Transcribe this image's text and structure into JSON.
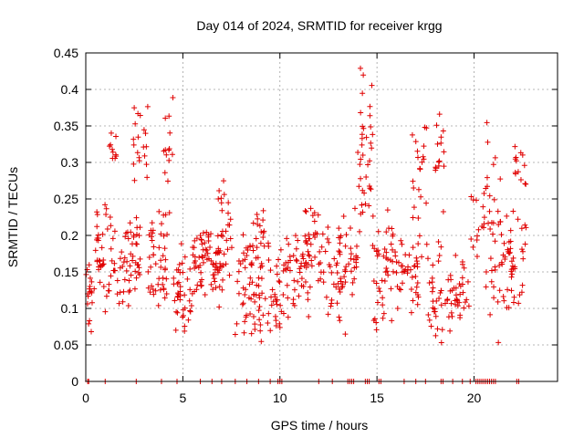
{
  "chart_data": {
    "type": "scatter",
    "title": "Day 014 of 2024, SRMTID for receiver krgg",
    "xlabel": "GPS time / hours",
    "ylabel": "SRMTID / TECUs",
    "xlim": [
      0,
      24.3
    ],
    "ylim": [
      0,
      0.45
    ],
    "x_ticks": [
      0,
      5,
      10,
      15,
      20
    ],
    "x_tick_labels": [
      "0",
      "5",
      "10",
      "15",
      "20"
    ],
    "y_ticks": [
      0,
      0.05,
      0.1,
      0.15,
      0.2,
      0.25,
      0.3,
      0.35,
      0.4,
      0.45
    ],
    "y_tick_labels": [
      "0",
      "0.05",
      "0.1",
      "0.15",
      "0.2",
      "0.25",
      "0.3",
      "0.35",
      "0.4",
      "0.45"
    ],
    "grid": true,
    "marker": "+",
    "color": "#e00000",
    "seed": 14,
    "zero_points_x": [
      0.1,
      0.15,
      1.0,
      2.6,
      3.9,
      4.7,
      5.9,
      6.5,
      7.0,
      7.7,
      8.3,
      8.9,
      9.5,
      9.9,
      10.0,
      10.1,
      12.0,
      12.7,
      13.5,
      13.6,
      13.7,
      13.8,
      14.4,
      14.5,
      14.6,
      15.1,
      15.2,
      16.4,
      17.0,
      17.5,
      18.3,
      18.4,
      18.9,
      19.4,
      19.8,
      20.1,
      20.2,
      20.3,
      20.4,
      20.5,
      20.6,
      20.7,
      20.8,
      20.9,
      21.0,
      21.1,
      22.2,
      22.3
    ],
    "clusters": [
      {
        "x0": 0.0,
        "x1": 0.5,
        "lo": 0.05,
        "hi": 0.19,
        "n": 18
      },
      {
        "x0": 0.5,
        "x1": 1.6,
        "lo": 0.09,
        "hi": 0.26,
        "n": 45
      },
      {
        "x0": 1.2,
        "x1": 1.6,
        "lo": 0.26,
        "hi": 0.37,
        "n": 10
      },
      {
        "x0": 1.6,
        "x1": 2.8,
        "lo": 0.09,
        "hi": 0.24,
        "n": 50
      },
      {
        "x0": 2.4,
        "x1": 3.2,
        "lo": 0.24,
        "hi": 0.4,
        "n": 20
      },
      {
        "x0": 3.2,
        "x1": 4.2,
        "lo": 0.08,
        "hi": 0.26,
        "n": 45
      },
      {
        "x0": 4.0,
        "x1": 4.5,
        "lo": 0.2,
        "hi": 0.41,
        "n": 15
      },
      {
        "x0": 4.5,
        "x1": 5.5,
        "lo": 0.05,
        "hi": 0.2,
        "n": 40
      },
      {
        "x0": 5.5,
        "x1": 7.2,
        "lo": 0.1,
        "hi": 0.21,
        "n": 75
      },
      {
        "x0": 6.8,
        "x1": 7.6,
        "lo": 0.12,
        "hi": 0.3,
        "n": 25
      },
      {
        "x0": 7.6,
        "x1": 9.0,
        "lo": 0.02,
        "hi": 0.22,
        "n": 55
      },
      {
        "x0": 8.6,
        "x1": 9.2,
        "lo": 0.15,
        "hi": 0.27,
        "n": 15
      },
      {
        "x0": 9.0,
        "x1": 10.0,
        "lo": 0.05,
        "hi": 0.2,
        "n": 35
      },
      {
        "x0": 10.0,
        "x1": 11.5,
        "lo": 0.06,
        "hi": 0.24,
        "n": 55
      },
      {
        "x0": 11.3,
        "x1": 12.0,
        "lo": 0.1,
        "hi": 0.28,
        "n": 25
      },
      {
        "x0": 12.0,
        "x1": 13.5,
        "lo": 0.06,
        "hi": 0.24,
        "n": 55
      },
      {
        "x0": 13.5,
        "x1": 14.0,
        "lo": 0.1,
        "hi": 0.24,
        "n": 18
      },
      {
        "x0": 14.0,
        "x1": 14.8,
        "lo": 0.15,
        "hi": 0.44,
        "n": 40
      },
      {
        "x0": 14.8,
        "x1": 16.0,
        "lo": 0.06,
        "hi": 0.25,
        "n": 45
      },
      {
        "x0": 16.0,
        "x1": 17.2,
        "lo": 0.06,
        "hi": 0.22,
        "n": 40
      },
      {
        "x0": 16.8,
        "x1": 17.6,
        "lo": 0.15,
        "hi": 0.4,
        "n": 25
      },
      {
        "x0": 17.6,
        "x1": 18.4,
        "lo": 0.04,
        "hi": 0.2,
        "n": 30
      },
      {
        "x0": 18.0,
        "x1": 18.5,
        "lo": 0.2,
        "hi": 0.42,
        "n": 15
      },
      {
        "x0": 18.5,
        "x1": 19.8,
        "lo": 0.05,
        "hi": 0.18,
        "n": 40
      },
      {
        "x0": 19.8,
        "x1": 20.6,
        "lo": 0.14,
        "hi": 0.27,
        "n": 15
      },
      {
        "x0": 20.6,
        "x1": 21.4,
        "lo": 0.03,
        "hi": 0.36,
        "n": 35
      },
      {
        "x0": 21.4,
        "x1": 22.1,
        "lo": 0.04,
        "hi": 0.27,
        "n": 35
      },
      {
        "x0": 22.1,
        "x1": 22.7,
        "lo": 0.05,
        "hi": 0.39,
        "n": 25
      }
    ]
  }
}
